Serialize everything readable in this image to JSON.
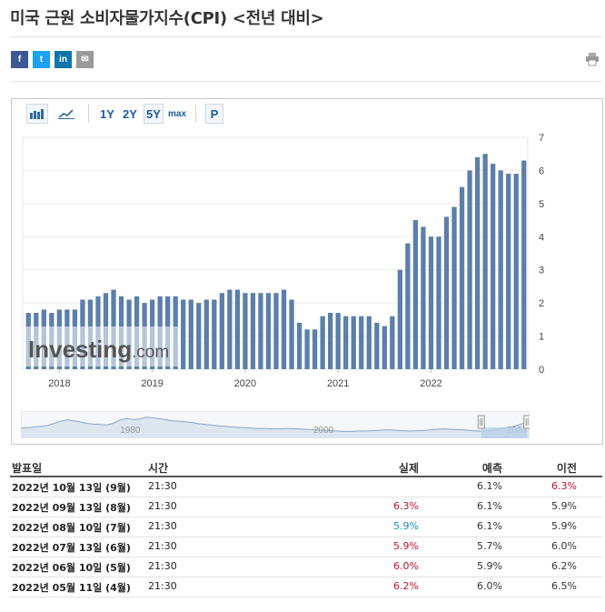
{
  "page": {
    "title": "미국 근원 소비자물가지수(CPI) <전년 대비>"
  },
  "share": {
    "facebook_label": "f",
    "twitter_label": "t",
    "linkedin_label": "in",
    "email_label": "✉",
    "print_icon": "printer-icon"
  },
  "toolbar": {
    "bar_icon": "bar-chart-icon",
    "line_icon": "line-chart-icon",
    "ranges": [
      "1Y",
      "2Y",
      "5Y",
      "max"
    ],
    "active_range": "5Y",
    "p_label": "P"
  },
  "colors": {
    "bar": "#5b7faa",
    "nav_line": "#8ca6c4",
    "nav_fill": "#dde5ef",
    "selection": "#b9d1ea",
    "red": "#c8102e",
    "blue": "#1a8fbd"
  },
  "watermark": {
    "brand": "Investing",
    "suffix": ".com"
  },
  "chart_data": {
    "type": "bar",
    "ylim": [
      0,
      7
    ],
    "y_ticks": [
      "0",
      "1",
      "2",
      "3",
      "4",
      "5",
      "6",
      "7"
    ],
    "x_ticks": [
      {
        "label": "2018",
        "index": 4
      },
      {
        "label": "2019",
        "index": 16
      },
      {
        "label": "2020",
        "index": 28
      },
      {
        "label": "2021",
        "index": 40
      },
      {
        "label": "2022",
        "index": 52
      }
    ],
    "values": [
      1.7,
      1.7,
      1.8,
      1.7,
      1.8,
      1.8,
      1.8,
      2.1,
      2.1,
      2.2,
      2.3,
      2.4,
      2.2,
      2.1,
      2.2,
      2.0,
      2.1,
      2.2,
      2.2,
      2.2,
      2.1,
      2.1,
      2.0,
      2.1,
      2.1,
      2.3,
      2.4,
      2.4,
      2.3,
      2.3,
      2.3,
      2.3,
      2.3,
      2.4,
      2.1,
      1.4,
      1.2,
      1.2,
      1.6,
      1.7,
      1.7,
      1.6,
      1.6,
      1.6,
      1.6,
      1.4,
      1.3,
      1.6,
      3.0,
      3.8,
      4.5,
      4.3,
      4.0,
      4.0,
      4.6,
      4.9,
      5.5,
      6.0,
      6.4,
      6.5,
      6.2,
      6.0,
      5.9,
      5.9,
      6.3
    ],
    "navigator": {
      "ticks": [
        {
          "label": "1980",
          "frac": 0.22
        },
        {
          "label": "2000",
          "frac": 0.6
        },
        {
          "label": "2020",
          "frac": 0.98
        }
      ],
      "series": [
        2.3,
        2.4,
        2.6,
        2.8,
        3.0,
        3.6,
        4.2,
        4.6,
        4.3,
        4.0,
        3.6,
        3.4,
        3.3,
        3.2,
        3.6,
        4.6,
        4.9,
        4.7,
        4.8,
        5.3,
        5.1,
        4.9,
        4.6,
        4.3,
        4.2,
        4.0,
        3.8,
        3.5,
        3.3,
        3.1,
        2.9,
        2.8,
        2.6,
        2.5,
        2.4,
        2.3,
        2.2,
        2.2,
        2.1,
        2.1,
        2.2,
        2.2,
        2.1,
        2.0,
        1.9,
        1.8,
        1.7,
        1.6,
        1.5,
        1.4,
        1.4,
        1.5,
        1.5,
        1.6,
        1.7,
        1.8,
        1.8,
        1.7,
        1.6,
        1.5,
        1.6,
        1.7,
        1.8,
        2.0,
        2.1,
        2.0,
        1.9,
        1.8,
        1.7,
        1.5,
        1.5,
        1.6,
        1.9,
        2.3,
        2.6,
        3.0,
        3.6,
        4.1
      ]
    }
  },
  "table": {
    "headers": {
      "date": "발표일",
      "time": "시간",
      "actual": "실제",
      "forecast": "예측",
      "previous": "이전"
    },
    "rows": [
      {
        "date": "2022년 10월 13일 (9월)",
        "time": "21:30",
        "actual": "",
        "actual_color": "",
        "forecast": "6.1%",
        "previous": "6.3%",
        "previous_color": "red"
      },
      {
        "date": "2022년 09월 13일 (8월)",
        "time": "21:30",
        "actual": "6.3%",
        "actual_color": "red",
        "forecast": "6.1%",
        "previous": "5.9%",
        "previous_color": ""
      },
      {
        "date": "2022년 08월 10일 (7월)",
        "time": "21:30",
        "actual": "5.9%",
        "actual_color": "blue",
        "forecast": "6.1%",
        "previous": "5.9%",
        "previous_color": ""
      },
      {
        "date": "2022년 07월 13일 (6월)",
        "time": "21:30",
        "actual": "5.9%",
        "actual_color": "red",
        "forecast": "5.7%",
        "previous": "6.0%",
        "previous_color": ""
      },
      {
        "date": "2022년 06월 10일 (5월)",
        "time": "21:30",
        "actual": "6.0%",
        "actual_color": "red",
        "forecast": "5.9%",
        "previous": "6.2%",
        "previous_color": ""
      },
      {
        "date": "2022년 05월 11일 (4월)",
        "time": "21:30",
        "actual": "6.2%",
        "actual_color": "red",
        "forecast": "6.0%",
        "previous": "6.5%",
        "previous_color": ""
      }
    ]
  }
}
